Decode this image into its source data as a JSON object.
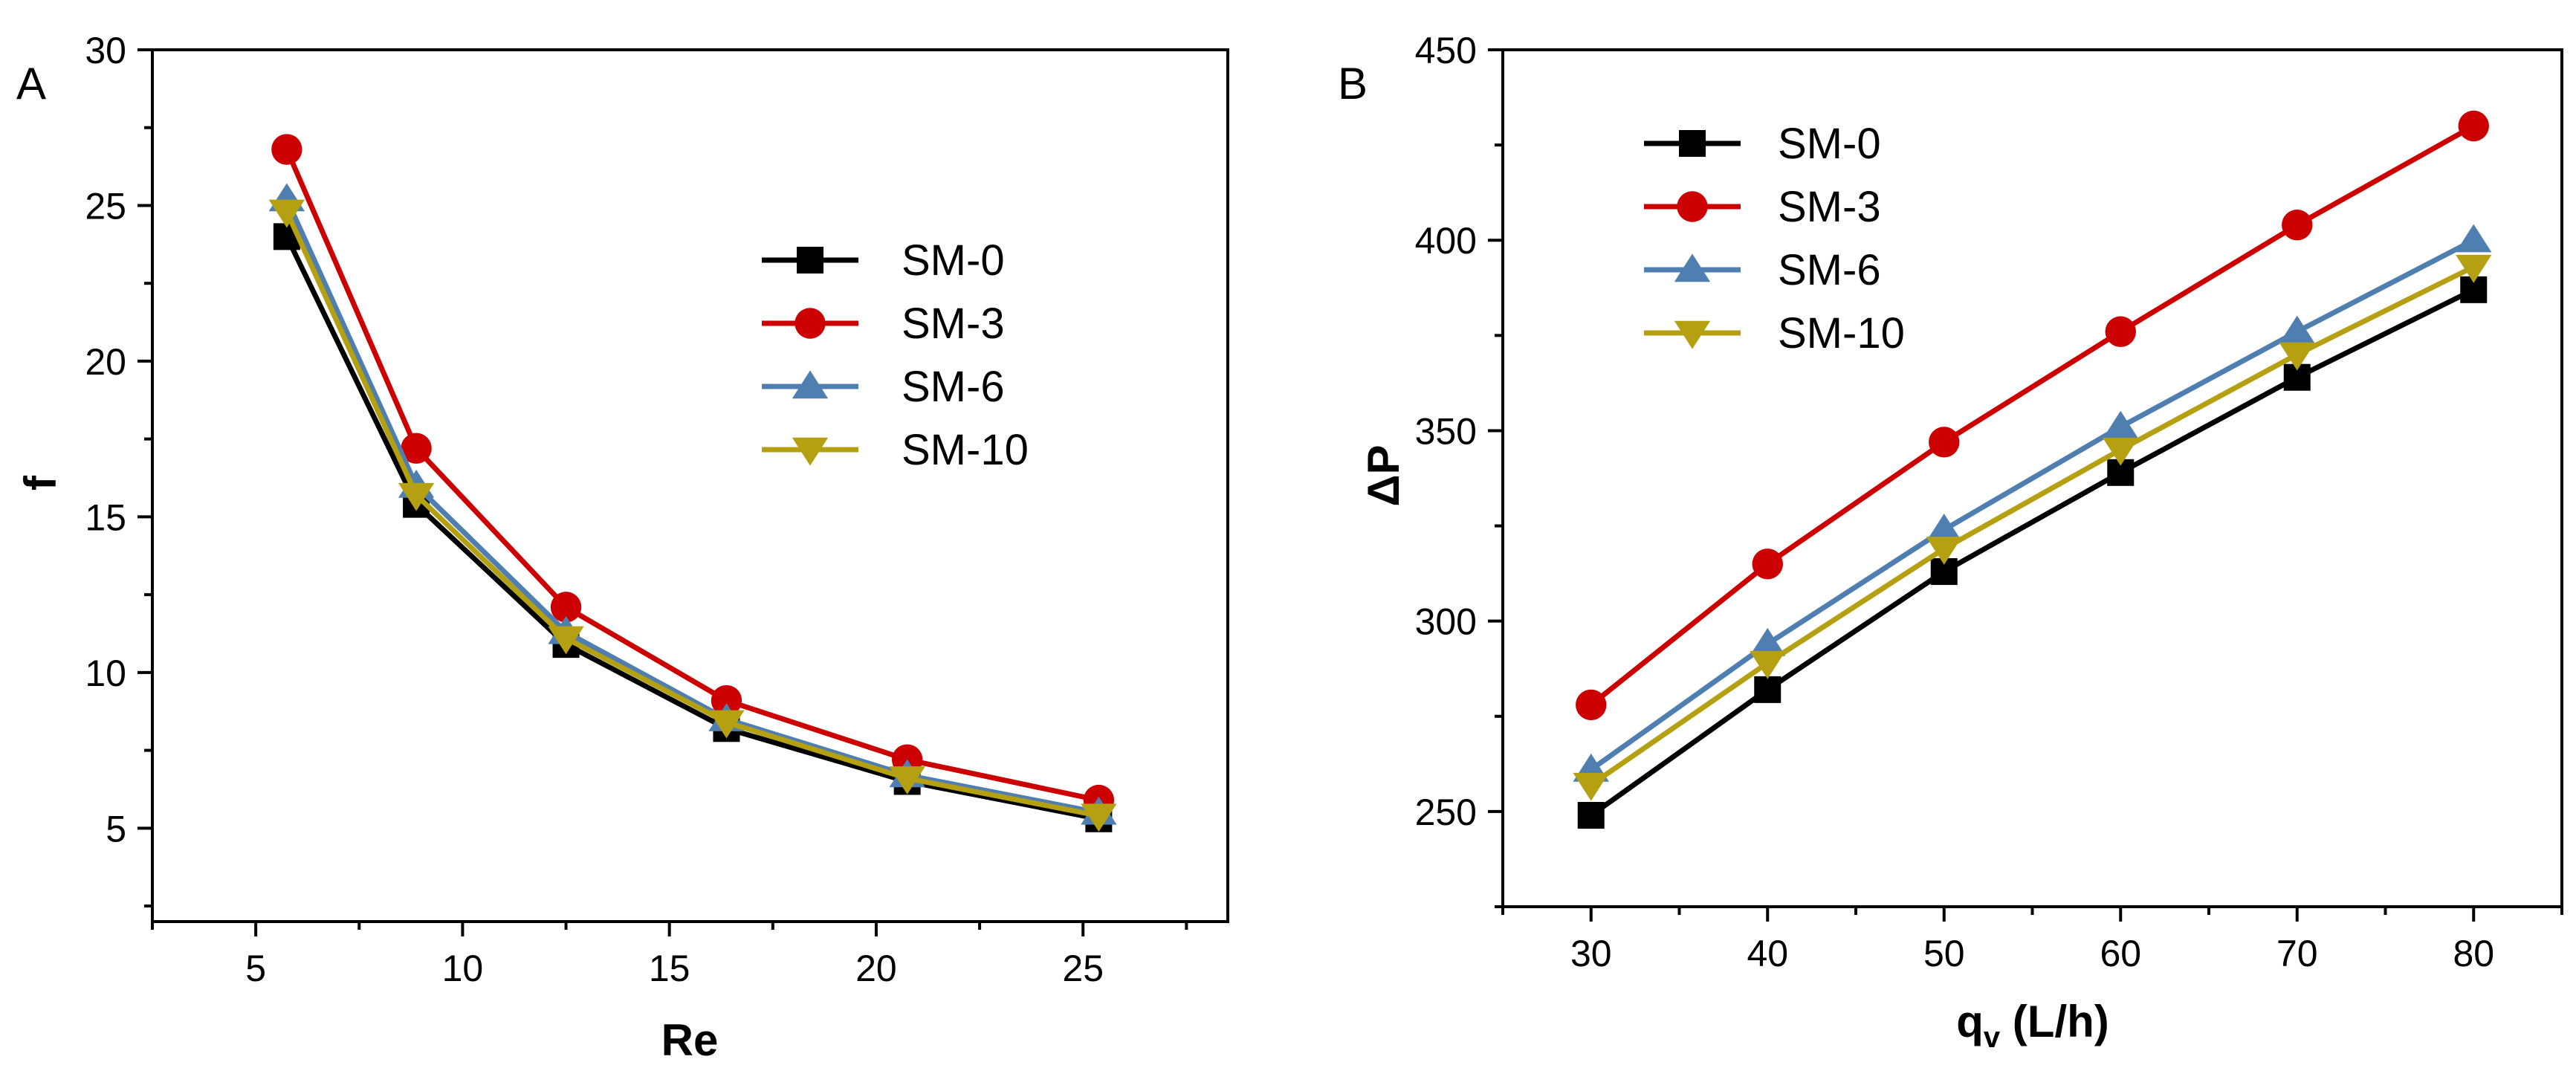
{
  "chart_data": [
    {
      "type": "line",
      "panel_label": "A",
      "xlabel": "Re",
      "ylabel": "f",
      "xlim": [
        2.5,
        28.5
      ],
      "ylim": [
        2,
        30
      ],
      "xticks": [
        5,
        10,
        15,
        20,
        25
      ],
      "yticks": [
        5,
        10,
        15,
        20,
        25,
        30
      ],
      "grid": false,
      "legend": "top-right",
      "x": [
        5.75,
        8.88,
        12.5,
        16.38,
        20.75,
        25.38
      ],
      "series": [
        {
          "name": "SM-0",
          "marker": "square",
          "color": "#000000",
          "values": [
            24.0,
            15.4,
            10.9,
            8.2,
            6.5,
            5.3
          ]
        },
        {
          "name": "SM-3",
          "marker": "circle",
          "color": "#cc0000",
          "values": [
            26.8,
            17.2,
            12.1,
            9.1,
            7.2,
            5.9
          ]
        },
        {
          "name": "SM-6",
          "marker": "triangle-up",
          "color": "#4f7fb0",
          "values": [
            25.2,
            16.0,
            11.3,
            8.5,
            6.7,
            5.5
          ]
        },
        {
          "name": "SM-10",
          "marker": "triangle-down",
          "color": "#b5a012",
          "values": [
            24.8,
            15.7,
            11.1,
            8.4,
            6.6,
            5.4
          ]
        }
      ]
    },
    {
      "type": "line",
      "panel_label": "B",
      "xlabel": "q",
      "xlabel_sub": "v",
      "xlabel_suffix": " (L/h)",
      "ylabel": "ΔP",
      "xlim": [
        25,
        85
      ],
      "ylim": [
        225,
        450
      ],
      "xticks": [
        30,
        40,
        50,
        60,
        70,
        80
      ],
      "yticks": [
        250,
        300,
        350,
        400,
        450
      ],
      "grid": false,
      "legend": "top-left",
      "x": [
        30,
        40,
        50,
        60,
        70,
        80
      ],
      "series": [
        {
          "name": "SM-0",
          "marker": "square",
          "color": "#000000",
          "values": [
            249,
            282,
            313,
            339,
            364,
            387
          ]
        },
        {
          "name": "SM-3",
          "marker": "circle",
          "color": "#cc0000",
          "values": [
            278,
            315,
            347,
            376,
            404,
            430
          ]
        },
        {
          "name": "SM-6",
          "marker": "triangle-up",
          "color": "#4f7fb0",
          "values": [
            261,
            294,
            324,
            351,
            376,
            400
          ]
        },
        {
          "name": "SM-10",
          "marker": "triangle-down",
          "color": "#b5a012",
          "values": [
            257,
            289,
            319,
            345,
            370,
            393
          ]
        }
      ]
    }
  ]
}
